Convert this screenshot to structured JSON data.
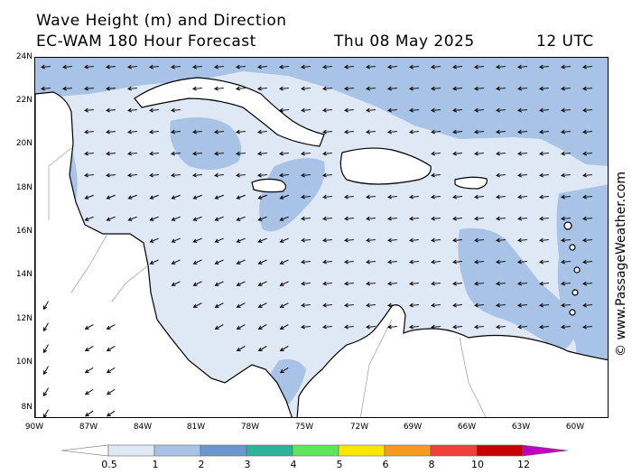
{
  "header": {
    "title": "Wave Height (m) and Direction",
    "subtitle": "EC-WAM 180 Hour Forecast",
    "date": "Thu 08 May 2025",
    "time": "12 UTC"
  },
  "credit": "© www.PassageWeather.com",
  "axes": {
    "lat_labels": [
      "24N",
      "22N",
      "20N",
      "18N",
      "16N",
      "14N",
      "12N",
      "10N",
      "8N"
    ],
    "lon_labels": [
      "90W",
      "87W",
      "84W",
      "81W",
      "78W",
      "75W",
      "72W",
      "69W",
      "66W",
      "63W",
      "60W"
    ]
  },
  "legend": {
    "unit": "m",
    "labels": [
      "0.5",
      "1",
      "2",
      "3",
      "4",
      "5",
      "6",
      "8",
      "10",
      "12"
    ],
    "colors": [
      "#dfe8f5",
      "#a9c3e6",
      "#6b96cf",
      "#2db39a",
      "#5ce65c",
      "#fae600",
      "#f79a1e",
      "#f04038",
      "#c80000",
      "#c000c0"
    ]
  },
  "colors": {
    "land": "#ffffff",
    "sea_low": "#dfe8f5",
    "sea_mid": "#a9c3e6",
    "arrow": "#000000"
  },
  "wave_field": {
    "dominant_direction": "easterly (arrows toward west-southwest)",
    "height_range_m": [
      0.5,
      2
    ]
  }
}
